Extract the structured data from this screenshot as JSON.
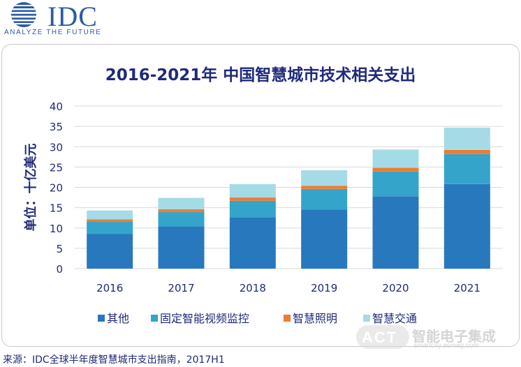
{
  "logo": {
    "name": "IDC",
    "tagline": "ANALYZE THE FUTURE"
  },
  "chart_data": {
    "type": "bar",
    "stacked": true,
    "title": "2016-2021年 中国智慧城市技术相关支出",
    "ylabel": "单位：十亿美元",
    "xlabel": "",
    "categories": [
      "2016",
      "2017",
      "2018",
      "2019",
      "2020",
      "2021"
    ],
    "ylim": [
      0,
      40
    ],
    "yticks": [
      0,
      5,
      10,
      15,
      20,
      25,
      30,
      35,
      40
    ],
    "grid": true,
    "legend_position": "bottom",
    "series": [
      {
        "name": "其他",
        "color": "#2878bd",
        "values": [
          8.5,
          10.4,
          12.6,
          14.5,
          17.8,
          20.8
        ]
      },
      {
        "name": "固定智能视频监控",
        "color": "#35a4cb",
        "values": [
          3.0,
          3.5,
          4.1,
          5.1,
          6.1,
          7.4
        ]
      },
      {
        "name": "智慧照明",
        "color": "#ee7d31",
        "values": [
          0.6,
          0.7,
          0.8,
          0.8,
          0.9,
          1.0
        ]
      },
      {
        "name": "智慧交通",
        "color": "#a5dbe6",
        "values": [
          2.2,
          2.8,
          3.3,
          3.8,
          4.5,
          5.5
        ]
      }
    ]
  },
  "footer": {
    "source": "来源：IDC全球半年度智慧城市支出指南，2017H1"
  },
  "watermark": {
    "mark": "ACT",
    "title": "智能电子集成",
    "url": "smartcity.asmag.com"
  }
}
